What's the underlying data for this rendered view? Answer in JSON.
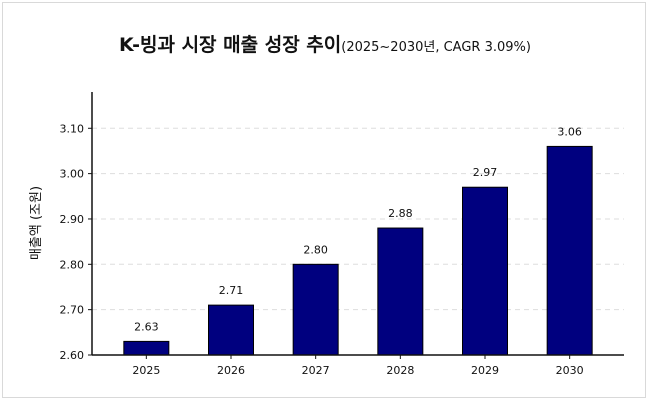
{
  "chart_data": {
    "type": "bar",
    "title": "K-빙과 시장 매출 성장 추이",
    "subtitle": "(2025~2030년, CAGR 3.09%)",
    "xlabel": "",
    "ylabel": "매출액 (조원)",
    "categories": [
      "2025",
      "2026",
      "2027",
      "2028",
      "2029",
      "2030"
    ],
    "values": [
      2.63,
      2.71,
      2.8,
      2.88,
      2.97,
      3.06
    ],
    "data_labels": [
      "2.63",
      "2.71",
      "2.80",
      "2.88",
      "2.97",
      "3.06"
    ],
    "ylim": [
      2.6,
      3.18
    ],
    "yticks": [
      2.6,
      2.7,
      2.8,
      2.9,
      3.0,
      3.1
    ],
    "ytick_labels": [
      "2.60",
      "2.70",
      "2.80",
      "2.90",
      "3.00",
      "3.10"
    ],
    "grid": "horizontal dashed",
    "legend": "none",
    "bar_color": "#00007f"
  }
}
